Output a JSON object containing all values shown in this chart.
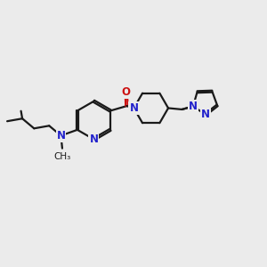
{
  "bg_color": "#ebebeb",
  "bond_color": "#1a1a1a",
  "nitrogen_color": "#2222cc",
  "oxygen_color": "#cc1111",
  "line_width": 1.6,
  "font_size": 8.5,
  "fig_width": 3.0,
  "fig_height": 3.0,
  "dpi": 100,
  "xlim": [
    0,
    10
  ],
  "ylim": [
    0,
    10
  ]
}
